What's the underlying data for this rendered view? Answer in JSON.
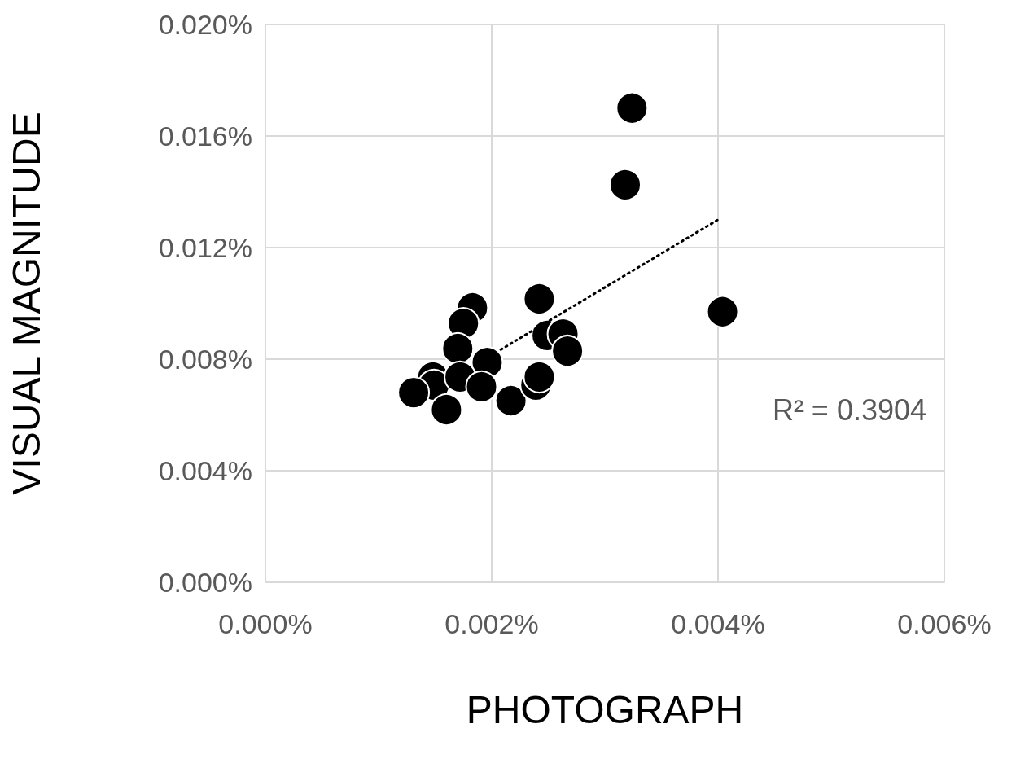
{
  "chart_data": {
    "type": "scatter",
    "xlabel": "PHOTOGRAPH",
    "ylabel": "VISUAL MAGNITUDE",
    "xlim": [
      0,
      0.006
    ],
    "ylim": [
      0,
      0.02
    ],
    "xticks": [
      {
        "value": 0,
        "label": "0.000%"
      },
      {
        "value": 0.002,
        "label": "0.002%"
      },
      {
        "value": 0.004,
        "label": "0.004%"
      },
      {
        "value": 0.006,
        "label": "0.006%"
      }
    ],
    "yticks": [
      {
        "value": 0,
        "label": "0.000%"
      },
      {
        "value": 0.004,
        "label": "0.004%"
      },
      {
        "value": 0.008,
        "label": "0.008%"
      },
      {
        "value": 0.012,
        "label": "0.012%"
      },
      {
        "value": 0.016,
        "label": "0.016%"
      },
      {
        "value": 0.02,
        "label": "0.020%"
      }
    ],
    "grid": true,
    "marker": "circle",
    "series": [
      {
        "color": "#000000",
        "x": [
          0.00183,
          0.00175,
          0.0017,
          0.00196,
          0.00148,
          0.00149,
          0.00172,
          0.00131,
          0.0016,
          0.00191,
          0.00217,
          0.00239,
          0.00242,
          0.00242,
          0.00249,
          0.00263,
          0.00267,
          0.00324,
          0.00318,
          0.00404
        ],
        "values": [
          0.00984,
          0.00928,
          0.00838,
          0.00788,
          0.00736,
          0.00707,
          0.00736,
          0.0068,
          0.00619,
          0.00701,
          0.00651,
          0.00707,
          0.00736,
          0.01016,
          0.00885,
          0.0089,
          0.00829,
          0.017,
          0.01425,
          0.0097
        ]
      },
      {
        "type": "line",
        "color": "#000000",
        "line_style": "dotted",
        "marker": "none",
        "x": [
          0.00208,
          0.004
        ],
        "values": [
          0.00834,
          0.013
        ]
      }
    ],
    "annotations": [
      "R² = 0.3904"
    ]
  }
}
